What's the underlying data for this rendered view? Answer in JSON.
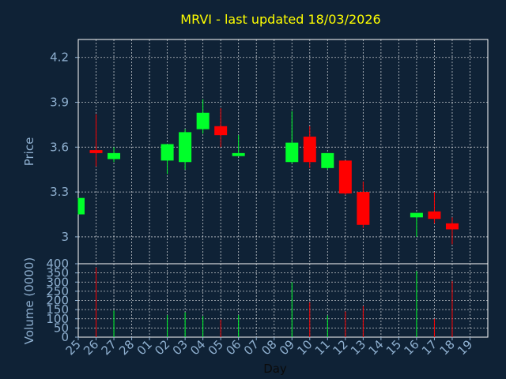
{
  "chart_data": [
    {
      "type": "candlestick",
      "title": "MRVI - last updated 18/03/2026",
      "ylabel": "Price",
      "ylim": [
        2.82,
        4.32
      ],
      "yticks": [
        3,
        3.3,
        3.6,
        3.9,
        4.2
      ],
      "ytick_labels": [
        "3",
        "3.3",
        "3.6",
        "3.9",
        "4.2"
      ],
      "categories": [
        "25",
        "26",
        "27",
        "28",
        "01",
        "02",
        "03",
        "04",
        "05",
        "06",
        "07",
        "08",
        "09",
        "10",
        "11",
        "12",
        "13",
        "14",
        "15",
        "16",
        "17",
        "18",
        "19"
      ],
      "up_color": "#00ff2a",
      "down_color": "#ff0000",
      "candles": [
        {
          "day": "25",
          "open": 3.15,
          "close": 3.26,
          "high": 3.26,
          "low": 3.15
        },
        {
          "day": "26",
          "open": 3.58,
          "close": 3.56,
          "high": 3.82,
          "low": 3.47
        },
        {
          "day": "27",
          "open": 3.52,
          "close": 3.56,
          "high": 3.6,
          "low": 3.5
        },
        {
          "day": "02",
          "open": 3.51,
          "close": 3.62,
          "high": 3.62,
          "low": 3.42
        },
        {
          "day": "03",
          "open": 3.5,
          "close": 3.7,
          "high": 3.72,
          "low": 3.45
        },
        {
          "day": "04",
          "open": 3.72,
          "close": 3.83,
          "high": 3.92,
          "low": 3.69
        },
        {
          "day": "05",
          "open": 3.74,
          "close": 3.68,
          "high": 3.86,
          "low": 3.6
        },
        {
          "day": "06",
          "open": 3.54,
          "close": 3.56,
          "high": 3.68,
          "low": 3.54
        },
        {
          "day": "09",
          "open": 3.5,
          "close": 3.63,
          "high": 3.84,
          "low": 3.49
        },
        {
          "day": "10",
          "open": 3.67,
          "close": 3.5,
          "high": 3.74,
          "low": 3.46
        },
        {
          "day": "11",
          "open": 3.46,
          "close": 3.56,
          "high": 3.56,
          "low": 3.45
        },
        {
          "day": "12",
          "open": 3.51,
          "close": 3.29,
          "high": 3.51,
          "low": 3.28
        },
        {
          "day": "13",
          "open": 3.3,
          "close": 3.08,
          "high": 3.37,
          "low": 3.06
        },
        {
          "day": "16",
          "open": 3.13,
          "close": 3.16,
          "high": 3.16,
          "low": 3.0
        },
        {
          "day": "17",
          "open": 3.17,
          "close": 3.12,
          "high": 3.3,
          "low": 3.09
        },
        {
          "day": "18",
          "open": 3.09,
          "close": 3.05,
          "high": 3.13,
          "low": 2.95
        }
      ]
    },
    {
      "type": "bar",
      "ylabel": "Volume (0000)",
      "xlabel": "Day",
      "ylim": [
        0,
        400
      ],
      "yticks": [
        0,
        50,
        100,
        150,
        200,
        250,
        300,
        350,
        400
      ],
      "ytick_labels": [
        "0",
        "50",
        "100",
        "150",
        "200",
        "250",
        "300",
        "350",
        "400"
      ],
      "categories": [
        "25",
        "26",
        "27",
        "28",
        "01",
        "02",
        "03",
        "04",
        "05",
        "06",
        "07",
        "08",
        "09",
        "10",
        "11",
        "12",
        "13",
        "14",
        "15",
        "16",
        "17",
        "18",
        "19"
      ],
      "bars": [
        {
          "day": "26",
          "value": 380,
          "dir": "down"
        },
        {
          "day": "27",
          "value": 145,
          "dir": "up"
        },
        {
          "day": "02",
          "value": 120,
          "dir": "up"
        },
        {
          "day": "03",
          "value": 135,
          "dir": "up"
        },
        {
          "day": "04",
          "value": 115,
          "dir": "up"
        },
        {
          "day": "05",
          "value": 95,
          "dir": "down"
        },
        {
          "day": "06",
          "value": 120,
          "dir": "up"
        },
        {
          "day": "09",
          "value": 300,
          "dir": "up"
        },
        {
          "day": "10",
          "value": 190,
          "dir": "down"
        },
        {
          "day": "11",
          "value": 118,
          "dir": "up"
        },
        {
          "day": "12",
          "value": 140,
          "dir": "down"
        },
        {
          "day": "13",
          "value": 170,
          "dir": "down"
        },
        {
          "day": "16",
          "value": 360,
          "dir": "up"
        },
        {
          "day": "17",
          "value": 100,
          "dir": "down"
        },
        {
          "day": "18",
          "value": 305,
          "dir": "down"
        }
      ]
    }
  ]
}
